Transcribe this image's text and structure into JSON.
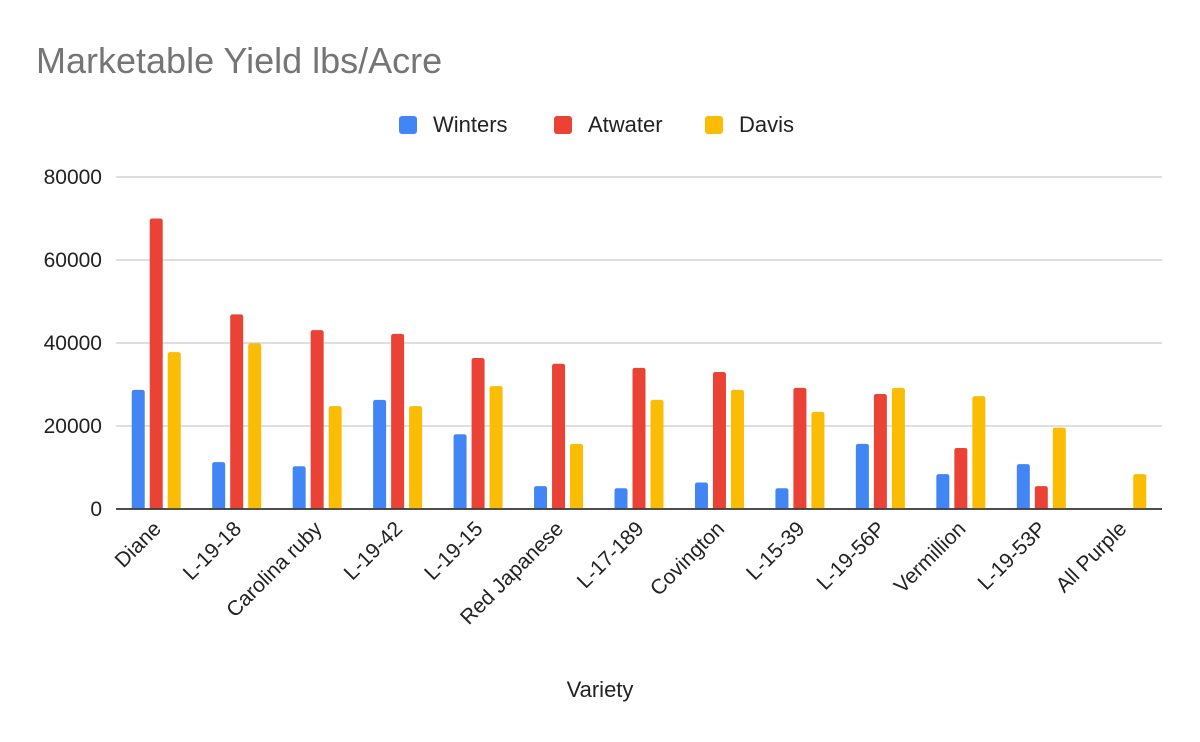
{
  "chart_data": {
    "type": "bar",
    "title": "Marketable Yield lbs/Acre",
    "xlabel": "Variety",
    "ylabel": "",
    "ylim": [
      0,
      80000
    ],
    "yticks": [
      0,
      20000,
      40000,
      60000,
      80000
    ],
    "grid": true,
    "legend_position": "top",
    "categories": [
      "Diane",
      "L-19-18",
      "Carolina ruby",
      "L-19-42",
      "L-19-15",
      "Red Japanese",
      "L-17-189",
      "Covington",
      "L-15-39",
      "L-19-56P",
      "Vermillion",
      "L-19-53P",
      "All Purple"
    ],
    "series": [
      {
        "name": "Winters",
        "color": "#4285F4",
        "values": [
          28700,
          11300,
          10300,
          26300,
          18000,
          5500,
          5000,
          6400,
          5000,
          15700,
          8400,
          10800,
          0
        ]
      },
      {
        "name": "Atwater",
        "color": "#EA4335",
        "values": [
          70000,
          46900,
          43100,
          42200,
          36400,
          35000,
          34000,
          33000,
          29200,
          27700,
          14700,
          5500,
          0
        ]
      },
      {
        "name": "Davis",
        "color": "#FBBC04",
        "values": [
          37800,
          39900,
          24800,
          24800,
          29600,
          15700,
          26300,
          28700,
          23400,
          29200,
          27200,
          19600,
          8400
        ]
      }
    ]
  }
}
